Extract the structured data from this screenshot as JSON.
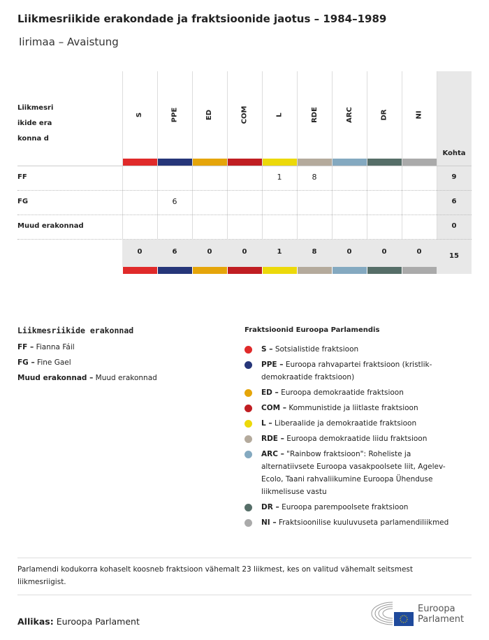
{
  "title": "Liikmesriikide erakondade ja fraktsioonide jaotus – 1984–1989",
  "subtitle": "Iirimaa – Avaistung",
  "table": {
    "corner_label": "Liikmesri ikide erakonna d",
    "total_header": "Kohta",
    "columns": [
      {
        "code": "S",
        "color": "#e02a2a"
      },
      {
        "code": "PPE",
        "color": "#263679"
      },
      {
        "code": "ED",
        "color": "#e5a50a"
      },
      {
        "code": "COM",
        "color": "#c01e22"
      },
      {
        "code": "L",
        "color": "#ecd90a"
      },
      {
        "code": "RDE",
        "color": "#b4aa9c"
      },
      {
        "code": "ARC",
        "color": "#84a9c0"
      },
      {
        "code": "DR",
        "color": "#566e68"
      },
      {
        "code": "NI",
        "color": "#aaaaaa"
      }
    ],
    "rows": [
      {
        "label": "FF",
        "values": [
          "",
          "",
          "",
          "",
          "1",
          "8",
          "",
          "",
          ""
        ],
        "total": "9"
      },
      {
        "label": "FG",
        "values": [
          "",
          "6",
          "",
          "",
          "",
          "",
          "",
          "",
          ""
        ],
        "total": "6"
      },
      {
        "label": "Muud erakonnad",
        "values": [
          "",
          "",
          "",
          "",
          "",
          "",
          "",
          "",
          ""
        ],
        "total": "0"
      }
    ],
    "totals": {
      "values": [
        "0",
        "6",
        "0",
        "0",
        "1",
        "8",
        "0",
        "0",
        "0"
      ],
      "total": "15"
    }
  },
  "legend_parties": {
    "title": "Liikmesriikide erakonnad",
    "items": [
      {
        "code": "FF –",
        "name": "Fianna Fáil"
      },
      {
        "code": "FG –",
        "name": "Fine Gael"
      },
      {
        "code": "Muud erakonnad –",
        "name": "Muud erakonnad"
      }
    ]
  },
  "legend_groups": {
    "title": "Fraktsioonid Euroopa Parlamendis",
    "items": [
      {
        "code": "S –",
        "name": "Sotsialistide fraktsioon"
      },
      {
        "code": "PPE –",
        "name": "Euroopa rahvapartei fraktsioon (kristlik-demokraatide fraktsioon)"
      },
      {
        "code": "ED –",
        "name": "Euroopa demokraatide fraktsioon"
      },
      {
        "code": "COM –",
        "name": "Kommunistide ja liitlaste fraktsioon"
      },
      {
        "code": "L –",
        "name": "Liberaalide ja demokraatide fraktsioon"
      },
      {
        "code": "RDE –",
        "name": "Euroopa demokraatide liidu fraktsioon"
      },
      {
        "code": "ARC –",
        "name": "\"Rainbow fraktsioon\": Roheliste ja alternatiivsete Euroopa vasakpoolsete liit, Agelev-Ecolo, Taani rahvaliikumine Euroopa Ühenduse liikmelisuse vastu"
      },
      {
        "code": "DR –",
        "name": "Euroopa parempoolsete fraktsioon"
      },
      {
        "code": "NI –",
        "name": "Fraktsioonilise kuuluvuseta parlamendiliikmed"
      }
    ]
  },
  "footnote": "Parlamendi kodukorra kohaselt koosneb fraktsioon vähemalt 23 liikmest, kes on valitud vähemalt seitsmest liikmesriigist.",
  "source": {
    "label": "Allikas:",
    "value": "Euroopa Parlament"
  },
  "logo": {
    "line1": "Euroopa",
    "line2": "Parlament"
  }
}
